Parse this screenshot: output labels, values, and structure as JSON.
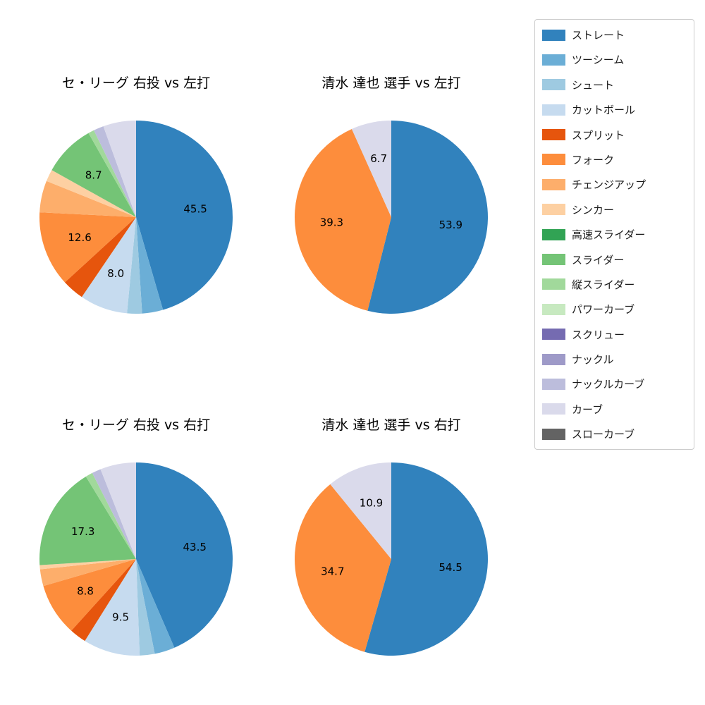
{
  "figure": {
    "background": "#ffffff"
  },
  "legend": {
    "position": "upper right",
    "items": [
      {
        "label": "ストレート",
        "color": "#3182bd"
      },
      {
        "label": "ツーシーム",
        "color": "#6baed6"
      },
      {
        "label": "シュート",
        "color": "#9ecae1"
      },
      {
        "label": "カットボール",
        "color": "#c6dbef"
      },
      {
        "label": "スプリット",
        "color": "#e6550d"
      },
      {
        "label": "フォーク",
        "color": "#fd8d3c"
      },
      {
        "label": "チェンジアップ",
        "color": "#fdae6b"
      },
      {
        "label": "シンカー",
        "color": "#fdd0a2"
      },
      {
        "label": "高速スライダー",
        "color": "#31a354"
      },
      {
        "label": "スライダー",
        "color": "#74c476"
      },
      {
        "label": "縦スライダー",
        "color": "#a1d99b"
      },
      {
        "label": "パワーカーブ",
        "color": "#c7e9c0"
      },
      {
        "label": "スクリュー",
        "color": "#756bb1"
      },
      {
        "label": "ナックル",
        "color": "#9e9ac8"
      },
      {
        "label": "ナックルカーブ",
        "color": "#bcbddc"
      },
      {
        "label": "カーブ",
        "color": "#dadaeb"
      },
      {
        "label": "スローカーブ",
        "color": "#636363"
      }
    ]
  },
  "chart_data": [
    {
      "type": "pie",
      "title": "セ・リーグ 右投 vs 左打",
      "start": "top",
      "direction": "clockwise",
      "slices": [
        {
          "name": "ストレート",
          "value": 45.5,
          "label": "45.5"
        },
        {
          "name": "ツーシーム",
          "value": 3.5
        },
        {
          "name": "シュート",
          "value": 2.5
        },
        {
          "name": "カットボール",
          "value": 8.0,
          "label": "8.0"
        },
        {
          "name": "スプリット",
          "value": 3.7
        },
        {
          "name": "フォーク",
          "value": 12.6,
          "label": "12.6"
        },
        {
          "name": "チェンジアップ",
          "value": 5.3
        },
        {
          "name": "シンカー",
          "value": 2.0
        },
        {
          "name": "スライダー",
          "value": 8.7,
          "label": "8.7"
        },
        {
          "name": "縦スライダー",
          "value": 1.0
        },
        {
          "name": "ナックルカーブ",
          "value": 1.7
        },
        {
          "name": "カーブ",
          "value": 5.5
        }
      ]
    },
    {
      "type": "pie",
      "title": "清水 達也 選手 vs 左打",
      "start": "top",
      "direction": "clockwise",
      "slices": [
        {
          "name": "ストレート",
          "value": 53.9,
          "label": "53.9"
        },
        {
          "name": "フォーク",
          "value": 39.3,
          "label": "39.3"
        },
        {
          "name": "カーブ",
          "value": 6.7,
          "label": "6.7"
        }
      ]
    },
    {
      "type": "pie",
      "title": "セ・リーグ 右投 vs 右打",
      "start": "top",
      "direction": "clockwise",
      "slices": [
        {
          "name": "ストレート",
          "value": 43.5,
          "label": "43.5"
        },
        {
          "name": "ツーシーム",
          "value": 3.4
        },
        {
          "name": "シュート",
          "value": 2.5
        },
        {
          "name": "カットボール",
          "value": 9.5,
          "label": "9.5"
        },
        {
          "name": "スプリット",
          "value": 2.8
        },
        {
          "name": "フォーク",
          "value": 8.8,
          "label": "8.8"
        },
        {
          "name": "チェンジアップ",
          "value": 2.8
        },
        {
          "name": "シンカー",
          "value": 0.7
        },
        {
          "name": "スライダー",
          "value": 17.3,
          "label": "17.3"
        },
        {
          "name": "縦スライダー",
          "value": 1.2
        },
        {
          "name": "ナックルカーブ",
          "value": 1.5
        },
        {
          "name": "カーブ",
          "value": 6.0
        }
      ]
    },
    {
      "type": "pie",
      "title": "清水 達也 選手 vs 右打",
      "start": "top",
      "direction": "clockwise",
      "slices": [
        {
          "name": "ストレート",
          "value": 54.5,
          "label": "54.5"
        },
        {
          "name": "フォーク",
          "value": 34.7,
          "label": "34.7"
        },
        {
          "name": "カーブ",
          "value": 10.9,
          "label": "10.9"
        }
      ]
    }
  ]
}
